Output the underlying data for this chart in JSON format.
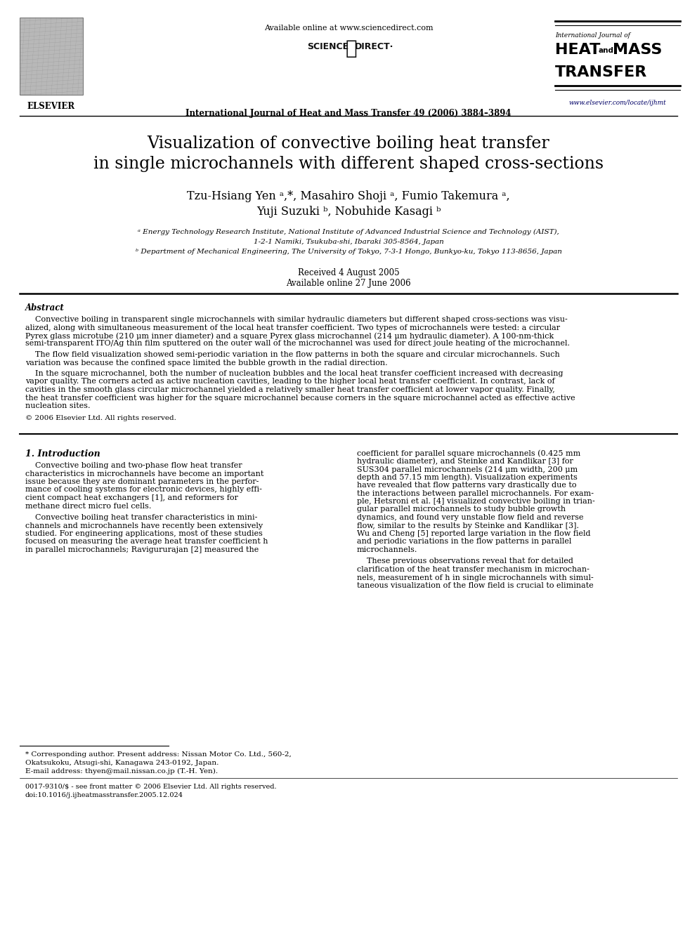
{
  "bg_color": "#ffffff",
  "avail_online": "Available online at www.sciencedirect.com",
  "scidir": "SCIENCE   ⓓ  DIRECT·",
  "journal_line": "International Journal of Heat and Mass Transfer 49 (2006) 3884–3894",
  "elsevier_text": "ELSEVIER",
  "ij_line1": "International Journal of",
  "heat": "HEAT",
  "and_text": "and",
  "mass": "MASS",
  "transfer": "TRANSFER",
  "website": "www.elsevier.com/locate/ijhmt",
  "title1": "Visualization of convective boiling heat transfer",
  "title2": "in single microchannels with different shaped cross-sections",
  "auth1": "Tzu-Hsiang Yen ᵃ,*, Masahiro Shoji ᵃ, Fumio Takemura ᵃ,",
  "auth2": "Yuji Suzuki ᵇ, Nobuhide Kasagi ᵇ",
  "affil_a1": "ᵃ Energy Technology Research Institute, National Institute of Advanced Industrial Science and Technology (AIST),",
  "affil_a2": "1-2-1 Namiki, Tsukuba-shi, Ibaraki 305-8564, Japan",
  "affil_b": "ᵇ Department of Mechanical Engineering, The University of Tokyo, 7-3-1 Hongo, Bunkyo-ku, Tokyo 113-8656, Japan",
  "received": "Received 4 August 2005",
  "avail_date": "Available online 27 June 2006",
  "abs_head": "Abstract",
  "abs_p1_lines": [
    "    Convective boiling in transparent single microchannels with similar hydraulic diameters but different shaped cross-sections was visu-",
    "alized, along with simultaneous measurement of the local heat transfer coefficient. Two types of microchannels were tested: a circular",
    "Pyrex glass microtube (210 μm inner diameter) and a square Pyrex glass microchannel (214 μm hydraulic diameter). A 100-nm-thick",
    "semi-transparent ITO/Ag thin film sputtered on the outer wall of the microchannel was used for direct joule heating of the microchannel."
  ],
  "abs_p2_lines": [
    "    The flow field visualization showed semi-periodic variation in the flow patterns in both the square and circular microchannels. Such",
    "variation was because the confined space limited the bubble growth in the radial direction."
  ],
  "abs_p3_lines": [
    "    In the square microchannel, both the number of nucleation bubbles and the local heat transfer coefficient increased with decreasing",
    "vapor quality. The corners acted as active nucleation cavities, leading to the higher local heat transfer coefficient. In contrast, lack of",
    "cavities in the smooth glass circular microchannel yielded a relatively smaller heat transfer coefficient at lower vapor quality. Finally,",
    "the heat transfer coefficient was higher for the square microchannel because corners in the square microchannel acted as effective active",
    "nucleation sites."
  ],
  "copyright": "© 2006 Elsevier Ltd. All rights reserved.",
  "s1_head": "1. Introduction",
  "c1p1": [
    "    Convective boiling and two-phase flow heat transfer",
    "characteristics in microchannels have become an important",
    "issue because they are dominant parameters in the perfor-",
    "mance of cooling systems for electronic devices, highly effi-",
    "cient compact heat exchangers [1], and reformers for",
    "methane direct micro fuel cells."
  ],
  "c1p2": [
    "    Convective boiling heat transfer characteristics in mini-",
    "channels and microchannels have recently been extensively",
    "studied. For engineering applications, most of these studies",
    "focused on measuring the average heat transfer coefficient h",
    "in parallel microchannels; Ravigururajan [2] measured the"
  ],
  "c2p1": [
    "coefficient for parallel square microchannels (0.425 mm",
    "hydraulic diameter), and Steinke and Kandlikar [3] for",
    "SUS304 parallel microchannels (214 μm width, 200 μm",
    "depth and 57.15 mm length). Visualization experiments",
    "have revealed that flow patterns vary drastically due to",
    "the interactions between parallel microchannels. For exam-",
    "ple, Hetsroni et al. [4] visualized convective boiling in trian-",
    "gular parallel microchannels to study bubble growth",
    "dynamics, and found very unstable flow field and reverse",
    "flow, similar to the results by Steinke and Kandlikar [3].",
    "Wu and Cheng [5] reported large variation in the flow field",
    "and periodic variations in the flow patterns in parallel",
    "microchannels."
  ],
  "c2p2": [
    "    These previous observations reveal that for detailed",
    "clarification of the heat transfer mechanism in microchan-",
    "nels, measurement of h in single microchannels with simul-",
    "taneous visualization of the flow field is crucial to eliminate"
  ],
  "fn_line": "* Corresponding author. Present address: Nissan Motor Co. Ltd., 560-2,",
  "fn_line2": "Okatsukoku, Atsugi-shi, Kanagawa 243-0192, Japan.",
  "fn_email": "E-mail address: thyen@mail.nissan.co.jp (T.-H. Yen).",
  "fn_issn": "0017-9310/$ - see front matter © 2006 Elsevier Ltd. All rights reserved.",
  "fn_doi": "doi:10.1016/j.ijheatmasstransfer.2005.12.024"
}
